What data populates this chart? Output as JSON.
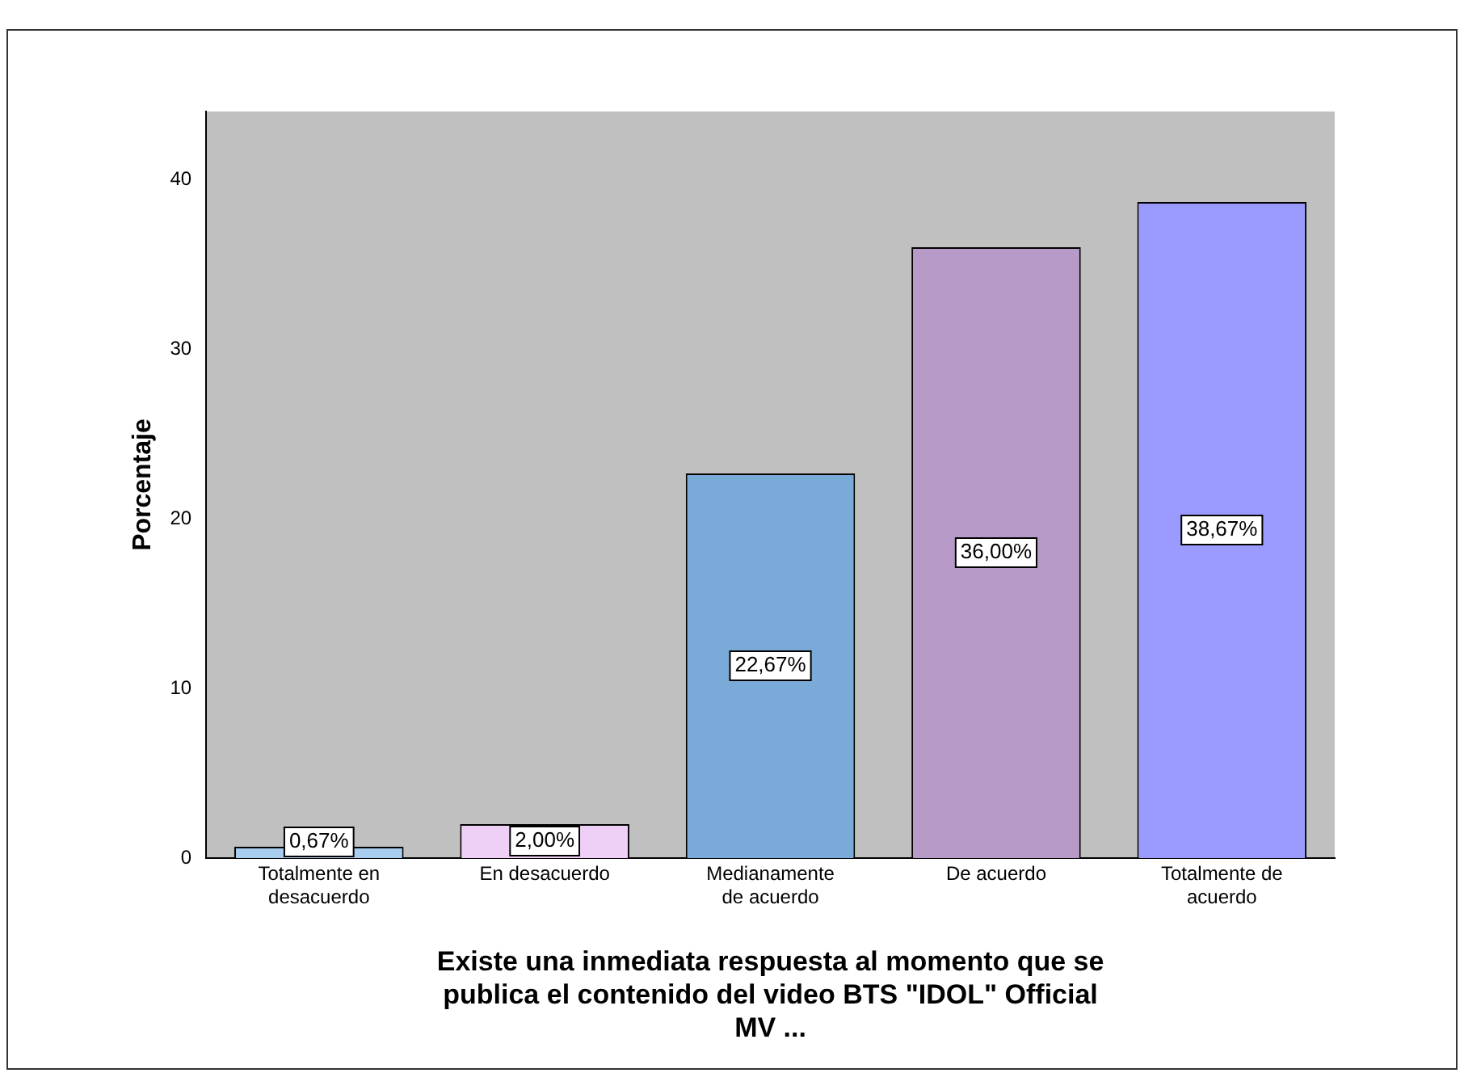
{
  "chart_data": {
    "type": "bar",
    "xlabel": "Existe una inmediata respuesta al momento que se publica el contenido del video BTS \"IDOL\" Official MV ...",
    "ylabel": "Porcentaje",
    "categories": [
      "Totalmente en desacuerdo",
      "En desacuerdo",
      "Medianamente de acuerdo",
      "De acuerdo",
      "Totalmente de acuerdo"
    ],
    "values": [
      0.67,
      2.0,
      22.67,
      36.0,
      38.67
    ],
    "value_labels": [
      "0,67%",
      "2,00%",
      "22,67%",
      "36,00%",
      "38,67%"
    ],
    "colors": [
      "#a9cdee",
      "#efcff5",
      "#7aaad8",
      "#b89ac8",
      "#9b9bff"
    ],
    "ylim": [
      0,
      44
    ],
    "yticks": [
      0,
      10,
      20,
      30,
      40
    ],
    "grid": false,
    "legend": false
  }
}
